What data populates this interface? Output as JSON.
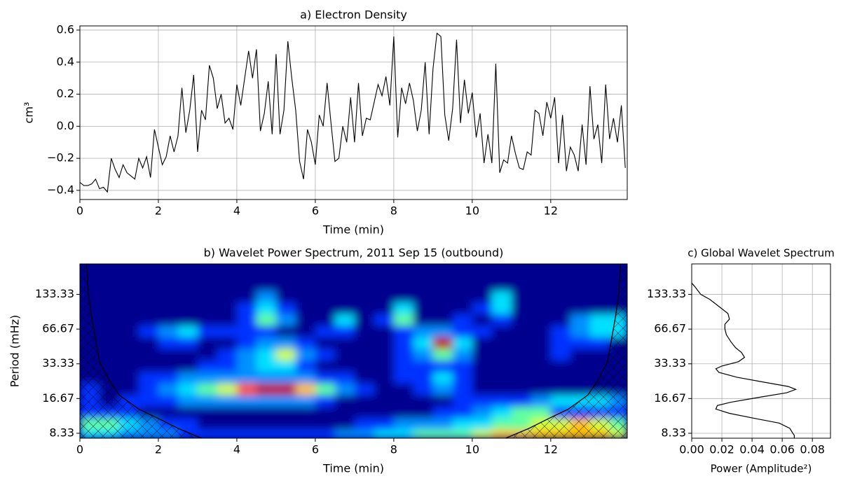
{
  "chart_data": [
    {
      "type": "line",
      "title": "a) Electron Density",
      "xlabel": "Time (min)",
      "ylabel": "cm³",
      "color": "#000000",
      "grid": true,
      "xlim": [
        0,
        13.95
      ],
      "ylim": [
        -0.457,
        0.626
      ],
      "xticks": [
        0,
        2,
        4,
        6,
        8,
        10,
        12
      ],
      "yticks": [
        {
          "value": -0.4,
          "label": "−0.4"
        },
        {
          "value": -0.2,
          "label": "−0.2"
        },
        {
          "value": 0,
          "label": "0.0"
        },
        0.2,
        0.4,
        0.6
      ],
      "x": [
        0,
        0.1,
        0.2,
        0.3,
        0.4,
        0.5,
        0.6,
        0.7,
        0.8,
        0.9,
        1,
        1.1,
        1.2,
        1.3,
        1.4,
        1.5,
        1.6,
        1.7,
        1.8,
        1.9,
        2,
        2.1,
        2.2,
        2.3,
        2.4,
        2.5,
        2.6,
        2.7,
        2.8,
        2.9,
        3,
        3.1,
        3.2,
        3.3,
        3.4,
        3.5,
        3.6,
        3.7,
        3.8,
        3.9,
        4,
        4.1,
        4.2,
        4.3,
        4.4,
        4.5,
        4.6,
        4.7,
        4.8,
        4.9,
        5,
        5.1,
        5.2,
        5.3,
        5.4,
        5.5,
        5.6,
        5.7,
        5.8,
        5.9,
        6,
        6.1,
        6.2,
        6.3,
        6.4,
        6.5,
        6.6,
        6.7,
        6.8,
        6.9,
        7,
        7.1,
        7.2,
        7.3,
        7.4,
        7.5,
        7.6,
        7.7,
        7.8,
        7.9,
        8,
        8.1,
        8.2,
        8.3,
        8.4,
        8.5,
        8.6,
        8.7,
        8.8,
        8.9,
        9,
        9.1,
        9.2,
        9.3,
        9.4,
        9.5,
        9.6,
        9.7,
        9.8,
        9.9,
        10,
        10.1,
        10.2,
        10.3,
        10.4,
        10.5,
        10.6,
        10.7,
        10.8,
        10.9,
        11,
        11.1,
        11.2,
        11.3,
        11.4,
        11.5,
        11.6,
        11.7,
        11.8,
        11.9,
        12,
        12.1,
        12.2,
        12.3,
        12.4,
        12.5,
        12.6,
        12.7,
        12.8,
        12.9,
        13,
        13.1,
        13.2,
        13.3,
        13.4,
        13.5,
        13.6,
        13.7,
        13.8,
        13.9
      ],
      "values": [
        -0.35,
        -0.37,
        -0.37,
        -0.36,
        -0.33,
        -0.39,
        -0.38,
        -0.41,
        -0.2,
        -0.27,
        -0.32,
        -0.24,
        -0.29,
        -0.31,
        -0.33,
        -0.2,
        -0.26,
        -0.19,
        -0.32,
        -0.02,
        -0.13,
        -0.24,
        -0.19,
        -0.06,
        -0.16,
        -0.06,
        0.24,
        -0.04,
        0.1,
        0.32,
        -0.16,
        0.1,
        0.04,
        0.38,
        0.3,
        0.11,
        0.2,
        0.02,
        0.05,
        -0.02,
        0.26,
        0.13,
        0.3,
        0.47,
        0.3,
        0.48,
        -0.03,
        0.08,
        0.28,
        -0.05,
        0.45,
        -0.05,
        0.1,
        0.53,
        0.3,
        0.1,
        -0.22,
        -0.33,
        -0.02,
        -0.1,
        -0.24,
        0.07,
        0,
        0.27,
        0.02,
        -0.22,
        -0.2,
        0,
        -0.1,
        0.18,
        -0.1,
        0.27,
        -0.06,
        0.05,
        0.04,
        0.15,
        0.26,
        0.19,
        0.31,
        0.13,
        0.56,
        -0.07,
        0.24,
        0.14,
        0.27,
        0.16,
        -0.03,
        0.1,
        0.4,
        -0.05,
        0.36,
        0.58,
        0.56,
        0.07,
        -0.09,
        0.11,
        0.54,
        0.02,
        0.29,
        0.08,
        0.21,
        -0.07,
        0.08,
        -0.23,
        -0.05,
        -0.23,
        0.39,
        -0.29,
        -0.21,
        -0.23,
        -0.06,
        -0.17,
        -0.26,
        -0.27,
        -0.16,
        -0.18,
        0.1,
        0.08,
        -0.06,
        0.15,
        0.05,
        0.18,
        -0.23,
        0.07,
        -0.28,
        -0.13,
        -0.18,
        -0.28,
        0.01,
        -0.24,
        0.25,
        -0.08,
        0.01,
        -0.23,
        0.26,
        -0.08,
        0.05,
        -0.1,
        0.13,
        -0.26
      ]
    },
    {
      "type": "heatmap",
      "title": "b) Wavelet Power Spectrum, 2011 Sep 15 (outbound)",
      "xlabel": "Time (min)",
      "ylabel": "Period (mHz)",
      "grid": false,
      "yscale": "log",
      "xlim": [
        0,
        13.95
      ],
      "ylim": [
        7.55,
        245
      ],
      "xticks": [
        0,
        2,
        4,
        6,
        8,
        10,
        12
      ],
      "yticks": [
        8.33,
        16.67,
        33.33,
        66.67,
        133.33
      ],
      "colors": [
        "#00008f",
        "#0030ff",
        "#0090ff",
        "#00e0ff",
        "#60ffa0",
        "#d0ff30",
        "#ffc000",
        "#ff5000",
        "#c00000"
      ],
      "x": [
        0.25,
        0.75,
        1.25,
        1.75,
        2.25,
        2.75,
        3.25,
        3.75,
        4.25,
        4.75,
        5.25,
        5.75,
        6.25,
        6.75,
        7.25,
        7.75,
        8.25,
        8.75,
        9.25,
        9.75,
        10.25,
        10.75,
        11.25,
        11.75,
        12.25,
        12.75,
        13.25,
        13.75
      ],
      "y": [
        8,
        10.1,
        12.7,
        16,
        20.2,
        25.4,
        32,
        40.3,
        50.8,
        64,
        80.6,
        101.6,
        128,
        161,
        203
      ],
      "z": [
        [
          3,
          3,
          2,
          2,
          2,
          1,
          1,
          1,
          1,
          1,
          1,
          1,
          1,
          2,
          2,
          3,
          3,
          4,
          4,
          4,
          5,
          6,
          6,
          6,
          6,
          6,
          6,
          5
        ],
        [
          4,
          4,
          3,
          2,
          1,
          1,
          0,
          0,
          0,
          0,
          0,
          0,
          0,
          0,
          1,
          1,
          2,
          2,
          2,
          3,
          3,
          4,
          4,
          5,
          5,
          6,
          5,
          4
        ],
        [
          1,
          1,
          1,
          0,
          0,
          0,
          0,
          0,
          0,
          0,
          0,
          0,
          0,
          0,
          0,
          0,
          0,
          0,
          1,
          1,
          2,
          3,
          4,
          4,
          1,
          1,
          1,
          1
        ],
        [
          1,
          0,
          1,
          1,
          1,
          2,
          2,
          2,
          2,
          2,
          2,
          2,
          1,
          0,
          0,
          0,
          0,
          0,
          0,
          1,
          1,
          1,
          1,
          2,
          3,
          3,
          3,
          2
        ],
        [
          1,
          0,
          0,
          1,
          2,
          3,
          4,
          5,
          7,
          8,
          8,
          6,
          4,
          2,
          1,
          0,
          0,
          1,
          2,
          1,
          0,
          0,
          0,
          0,
          0,
          0,
          0,
          0
        ],
        [
          0,
          0,
          0,
          1,
          1,
          2,
          2,
          2,
          2,
          2,
          2,
          2,
          1,
          1,
          0,
          0,
          1,
          1,
          3,
          1,
          0,
          0,
          0,
          0,
          0,
          0,
          0,
          0
        ],
        [
          0,
          0,
          0,
          0,
          0,
          0,
          1,
          1,
          2,
          3,
          3,
          1,
          0,
          0,
          0,
          0,
          1,
          1,
          1,
          1,
          0,
          0,
          0,
          0,
          0,
          0,
          0,
          0
        ],
        [
          0,
          0,
          0,
          0,
          0,
          0,
          0,
          1,
          2,
          3,
          5,
          2,
          1,
          0,
          0,
          0,
          1,
          2,
          4,
          2,
          0,
          0,
          0,
          0,
          1,
          0,
          0,
          0
        ],
        [
          0,
          0,
          0,
          0,
          1,
          1,
          0,
          0,
          1,
          2,
          2,
          1,
          0,
          0,
          0,
          0,
          1,
          3,
          8,
          3,
          0,
          0,
          0,
          0,
          1,
          1,
          1,
          0
        ],
        [
          0,
          0,
          0,
          1,
          2,
          3,
          1,
          1,
          1,
          1,
          0,
          0,
          1,
          1,
          0,
          0,
          1,
          2,
          2,
          1,
          1,
          0,
          0,
          0,
          1,
          2,
          3,
          3
        ],
        [
          0,
          0,
          0,
          0,
          0,
          0,
          0,
          0,
          1,
          4,
          2,
          0,
          0,
          3,
          0,
          1,
          4,
          0,
          0,
          1,
          0,
          1,
          0,
          0,
          0,
          2,
          3,
          3
        ],
        [
          0,
          0,
          0,
          0,
          0,
          0,
          0,
          0,
          1,
          3,
          1,
          0,
          0,
          0,
          0,
          0,
          3,
          0,
          0,
          0,
          1,
          3,
          0,
          0,
          0,
          0,
          0,
          0
        ],
        [
          0,
          0,
          0,
          0,
          0,
          0,
          0,
          0,
          0,
          2,
          0,
          0,
          0,
          0,
          0,
          0,
          0,
          0,
          0,
          0,
          0,
          3,
          0,
          0,
          0,
          0,
          0,
          0
        ],
        [
          0,
          0,
          0,
          0,
          0,
          0,
          0,
          0,
          0,
          0,
          0,
          0,
          0,
          0,
          0,
          0,
          0,
          0,
          0,
          0,
          0,
          0,
          0,
          0,
          0,
          0,
          0,
          0
        ],
        [
          0,
          0,
          0,
          0,
          0,
          0,
          0,
          0,
          0,
          0,
          0,
          0,
          0,
          0,
          0,
          0,
          0,
          0,
          0,
          0,
          0,
          0,
          0,
          0,
          0,
          0,
          0,
          0
        ]
      ],
      "coi": [
        {
          "color": "#000000",
          "x": [
            0.17,
            0.22,
            0.3,
            0.5,
            0.75,
            1,
            1.5,
            2,
            2.5,
            3.1
          ],
          "y": [
            245,
            133,
            85,
            35,
            24,
            17.9,
            13.5,
            11.2,
            9.2,
            7.55
          ]
        },
        {
          "color": "#000000",
          "x": [
            13.78,
            13.73,
            13.65,
            13.45,
            13.2,
            12.95,
            12.45,
            11.95,
            11.45,
            10.85
          ],
          "y": [
            245,
            133,
            85,
            35,
            24,
            17.9,
            13.5,
            11.2,
            9.2,
            7.55
          ]
        }
      ]
    },
    {
      "type": "profile",
      "title": "c) Global Wavelet Spectrum",
      "xlabel": "Power (Amplitude²)",
      "color": "#000000",
      "grid": true,
      "yscale": "log",
      "xlim": [
        0,
        0.092
      ],
      "ylim": [
        7.55,
        245
      ],
      "xticks": [
        {
          "value": 0,
          "label": "0.00"
        },
        0.02,
        0.04,
        0.06,
        0.08
      ],
      "yticks": [
        8.33,
        16.67,
        33.33,
        66.67,
        133.33
      ],
      "x": [
        0,
        0.002,
        0.006,
        0.012,
        0.018,
        0.024,
        0.025,
        0.022,
        0.022,
        0.023,
        0.026,
        0.029,
        0.033,
        0.035,
        0.031,
        0.02,
        0.016,
        0.018,
        0.03,
        0.048,
        0.064,
        0.069,
        0.063,
        0.045,
        0.026,
        0.017,
        0.016,
        0.025,
        0.042,
        0.058,
        0.065,
        0.067,
        0.068,
        0.068
      ],
      "y": [
        167,
        156,
        133.3,
        120.6,
        104.8,
        91,
        81.3,
        73.6,
        66.6,
        59.5,
        51.7,
        46.1,
        41.8,
        37.9,
        34.8,
        31.9,
        30.2,
        28.1,
        25.5,
        23.1,
        21.2,
        20,
        18.7,
        17.1,
        15.5,
        14.5,
        13.5,
        12.4,
        11.2,
        10.2,
        9.2,
        8.33,
        8,
        7.55
      ]
    }
  ]
}
